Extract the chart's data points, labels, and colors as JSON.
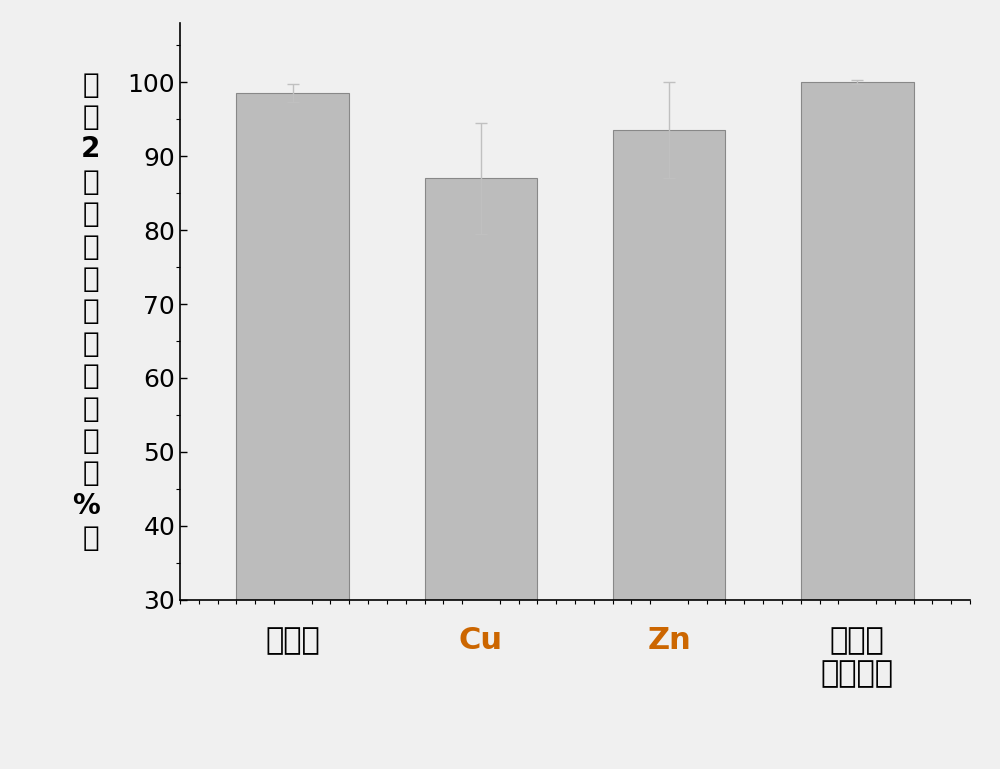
{
  "categories": [
    "四环素",
    "Cu",
    "Zn",
    "四环素\n抗性基因"
  ],
  "values": [
    98.5,
    87.0,
    93.5,
    100.0
  ],
  "errors": [
    1.2,
    7.5,
    6.5,
    0.3
  ],
  "bar_color": "#bcbcbc",
  "bar_edge_color": "#888888",
  "bar_width": 0.6,
  "ylim": [
    30,
    108
  ],
  "yticks": [
    30,
    40,
    50,
    60,
    70,
    80,
    90,
    100
  ],
  "ylabel_chars": [
    "洗",
    "脱",
    "2",
    "次",
    "后",
    "各",
    "污",
    "染",
    "物",
    "去",
    "除",
    "率",
    "（",
    "%",
    "）"
  ],
  "background_color": "#f0f0f0",
  "plot_bg_color": "#f0f0f0",
  "error_cap_size": 4,
  "error_color": "#c0c0c0",
  "ylabel_fontsize": 20,
  "xlabel_fontsize": 22,
  "tick_fontsize": 18,
  "cu_zn_color": "#cc6600",
  "chinese_color": "#000000"
}
